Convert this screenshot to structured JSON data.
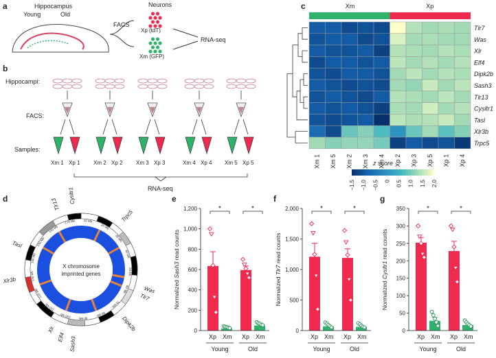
{
  "panel_a": {
    "letter": "a",
    "hippocampus": "Hippocampus",
    "young": "Young",
    "old": "Old",
    "facs": "FACS",
    "neurons": "Neurons",
    "xp_label": "Xp (tdT)",
    "xm_label": "Xm (GFP)",
    "rnaseq": "RNA-seq"
  },
  "panel_b": {
    "letter": "b",
    "row_hippocampi": "Hippocampi:",
    "row_facs": "FACS:",
    "row_samples": "Samples:",
    "pairs": [
      {
        "xm": "Xm 1",
        "xp": "Xp 1"
      },
      {
        "xm": "Xm 2",
        "xp": "Xp 2"
      },
      {
        "xm": "Xm 3",
        "xp": "Xp 3"
      },
      {
        "xm": "Xm 4",
        "xp": "Xp 4"
      },
      {
        "xm": "Xm 5",
        "xp": "Xp 5"
      }
    ],
    "rnaseq": "RNA-seq"
  },
  "panel_c": {
    "letter": "c",
    "group_xm": "Xm",
    "group_xp": "Xp",
    "group_xm_color": "#2fb36b",
    "group_xp_color": "#ee2a4f",
    "genes": [
      "Tlr7",
      "Was",
      "Xlr",
      "Elf4",
      "Dipk2b",
      "Sash3",
      "Tlr13",
      "Cysltr1",
      "Tasl",
      "Xlr3b",
      "Trpc5"
    ],
    "columns": [
      "Xm 1",
      "Xm 5",
      "Xm 2",
      "Xm 3",
      "Xm 4",
      "Xp 2",
      "Xp 3",
      "Xp 5",
      "Xp 1",
      "Xp 4"
    ],
    "z": [
      [
        -1.0,
        -1.0,
        -1.2,
        -1.1,
        -1.2,
        2.0,
        1.2,
        1.0,
        1.1,
        1.0
      ],
      [
        -1.1,
        -1.0,
        -1.0,
        -1.2,
        -1.1,
        1.6,
        1.0,
        1.1,
        1.0,
        1.0
      ],
      [
        -1.0,
        -1.1,
        -1.1,
        -1.0,
        -1.3,
        1.2,
        1.1,
        1.0,
        1.2,
        1.1
      ],
      [
        -1.2,
        -1.0,
        -1.0,
        -1.1,
        -1.0,
        1.3,
        1.0,
        1.2,
        1.0,
        1.2
      ],
      [
        -1.1,
        -1.2,
        -1.0,
        -1.0,
        -1.1,
        1.0,
        1.3,
        1.0,
        1.2,
        1.1
      ],
      [
        -1.0,
        -1.1,
        -1.2,
        -1.1,
        -1.2,
        1.0,
        0.9,
        1.4,
        1.0,
        1.3
      ],
      [
        -1.1,
        -1.0,
        -1.1,
        -1.2,
        -1.0,
        1.2,
        1.1,
        1.0,
        1.3,
        1.0
      ],
      [
        -1.0,
        -1.1,
        -1.0,
        -1.1,
        -1.3,
        1.1,
        1.0,
        1.5,
        1.0,
        1.2
      ],
      [
        -1.1,
        -1.2,
        -1.1,
        -1.0,
        -1.5,
        1.3,
        1.1,
        1.2,
        1.4,
        1.0
      ],
      [
        -0.8,
        -1.2,
        0.6,
        0.8,
        0.4,
        -0.2,
        0.6,
        1.0,
        0.5,
        0.8
      ],
      [
        1.0,
        0.8,
        0.9,
        0.9,
        0.7,
        -1.3,
        -1.0,
        -1.2,
        -1.1,
        -1.4
      ]
    ],
    "colorbar_title": "z score",
    "colorbar_ticks": [
      "−1.5",
      "−1.0",
      "−0.5",
      "0",
      "0.5",
      "1.0",
      "1.5",
      "2.0"
    ]
  },
  "panel_d": {
    "letter": "d",
    "center_text": [
      "X chromosome",
      "imprinted genes"
    ],
    "genes": [
      "Cysltr1",
      "Tlr13",
      "Trpc5",
      "Tasl",
      "Xlr3b",
      "Was",
      "Tlr7",
      "Dipk2b",
      "Xlr",
      "Elf4",
      "Sash3"
    ],
    "ring_labels": [
      "10 Mb",
      "20 Mb",
      "30 Mb",
      "40 Mb",
      "50 Mb",
      "60 Mb",
      "70 Mb",
      "80 Mb",
      "90 Mb",
      "100 Mb",
      "110 Mb",
      "120 Mb",
      "130 Mb",
      "140 Mb",
      "150 Mb",
      "160 Mb",
      "170 Mb"
    ],
    "ring_color": "#1a4fe0",
    "mark_color": "#e8843a"
  },
  "bar_charts": [
    {
      "letter": "e",
      "gene": "Sash3",
      "ylabel_prefix": "Normalized",
      "ylabel_suffix": "read counts",
      "ylim": [
        0,
        1200
      ],
      "yticks": [
        "0",
        "200",
        "400",
        "600",
        "800",
        "1,000",
        "1,200"
      ],
      "ytick_values": [
        0,
        200,
        400,
        600,
        800,
        1000,
        1200
      ],
      "groups": [
        "Young",
        "Old"
      ],
      "bar_labels": [
        "Xp",
        "Xm",
        "Xp",
        "Xm"
      ],
      "means": [
        635,
        20,
        595,
        50
      ],
      "sem": [
        140,
        8,
        40,
        8
      ],
      "points": [
        [
          1000,
          950,
          640,
          330,
          180
        ],
        [
          30,
          25,
          20,
          15,
          10
        ],
        [
          700,
          650,
          610,
          560,
          520
        ],
        [
          70,
          60,
          55,
          45,
          40
        ]
      ],
      "sig": [
        "*",
        "*"
      ],
      "colors": [
        "#ee2a4f",
        "#2fb36b",
        "#ee2a4f",
        "#2fb36b"
      ]
    },
    {
      "letter": "f",
      "gene": "Tlr7",
      "ylabel_prefix": "Normalized",
      "ylabel_suffix": "read counts",
      "ylim": [
        0,
        2000
      ],
      "yticks": [
        "0",
        "500",
        "1,000",
        "1,500",
        "2,000"
      ],
      "ytick_values": [
        0,
        500,
        1000,
        1500,
        2000
      ],
      "groups": [
        "Young",
        "Old"
      ],
      "bar_labels": [
        "Xp",
        "Xm",
        "Xp",
        "Xm"
      ],
      "means": [
        1210,
        70,
        1190,
        60
      ],
      "sem": [
        220,
        20,
        150,
        15
      ],
      "points": [
        [
          1750,
          1600,
          1250,
          900,
          350
        ],
        [
          110,
          90,
          70,
          50,
          30
        ],
        [
          1640,
          1450,
          1240,
          840,
          500
        ],
        [
          100,
          80,
          60,
          40,
          30
        ]
      ],
      "sig": [
        "*",
        "*"
      ],
      "colors": [
        "#ee2a4f",
        "#2fb36b",
        "#ee2a4f",
        "#2fb36b"
      ]
    },
    {
      "letter": "g",
      "gene": "Cysltr1",
      "ylabel_prefix": "Normalized",
      "ylabel_suffix": "read counts",
      "ylim": [
        0,
        350
      ],
      "yticks": [
        "0",
        "50",
        "100",
        "150",
        "200",
        "250",
        "300",
        "350"
      ],
      "ytick_values": [
        0,
        50,
        100,
        150,
        200,
        250,
        300,
        350
      ],
      "groups": [
        "Young",
        "Old"
      ],
      "bar_labels": [
        "Xp",
        "Xm",
        "Xp",
        "Xm"
      ],
      "means": [
        252,
        28,
        228,
        16
      ],
      "sem": [
        15,
        10,
        28,
        4
      ],
      "points": [
        [
          300,
          270,
          250,
          220,
          210
        ],
        [
          50,
          40,
          30,
          20,
          10
        ],
        [
          300,
          290,
          240,
          180,
          140
        ],
        [
          25,
          20,
          15,
          12,
          8
        ]
      ],
      "sig": [
        "*",
        "*"
      ],
      "colors": [
        "#ee2a4f",
        "#2fb36b",
        "#ee2a4f",
        "#2fb36b"
      ]
    }
  ]
}
